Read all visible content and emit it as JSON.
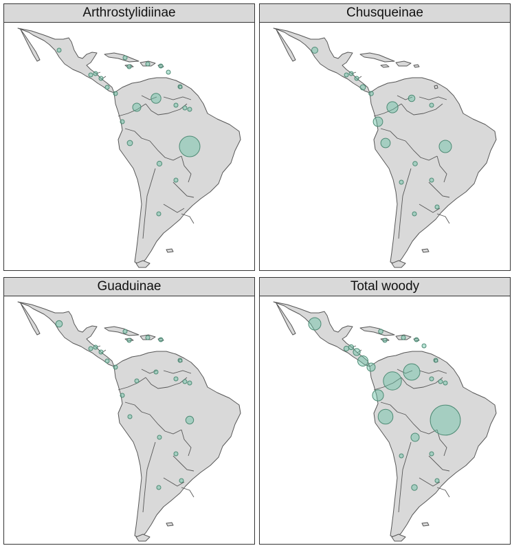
{
  "colors": {
    "bubble": "#66c2a5",
    "land": "#d9d9d9",
    "outline": "#555555",
    "strip": "#d9d9d9"
  },
  "panels": [
    {
      "title": "Arthrostylidiinae",
      "bubbles": [
        {
          "region": "Mexico",
          "size": 0.08
        },
        {
          "region": "Cuba",
          "size": 0.08
        },
        {
          "region": "Hispaniola",
          "size": 0.05
        },
        {
          "region": "Jamaica",
          "size": 0.04
        },
        {
          "region": "Puerto Rico",
          "size": 0.04
        },
        {
          "region": "Lesser Antilles",
          "size": 0.04
        },
        {
          "region": "Guatemala",
          "size": 0.05
        },
        {
          "region": "Honduras",
          "size": 0.06
        },
        {
          "region": "Nicaragua",
          "size": 0.07
        },
        {
          "region": "Costa Rica",
          "size": 0.09
        },
        {
          "region": "Panama",
          "size": 0.08
        },
        {
          "region": "Colombia",
          "size": 0.2
        },
        {
          "region": "Venezuela",
          "size": 0.24
        },
        {
          "region": "Trinidad",
          "size": 0.05
        },
        {
          "region": "Guyana",
          "size": 0.06
        },
        {
          "region": "Suriname",
          "size": 0.04
        },
        {
          "region": "French Guiana",
          "size": 0.04
        },
        {
          "region": "Ecuador",
          "size": 0.1
        },
        {
          "region": "Peru",
          "size": 0.13
        },
        {
          "region": "Brazil",
          "size": 0.5
        },
        {
          "region": "Bolivia",
          "size": 0.12
        },
        {
          "region": "Paraguay",
          "size": 0.04
        },
        {
          "region": "Argentina",
          "size": 0.07
        }
      ]
    },
    {
      "title": "Chusqueinae",
      "bubbles": [
        {
          "region": "Mexico",
          "size": 0.15
        },
        {
          "region": "Guatemala",
          "size": 0.06
        },
        {
          "region": "Honduras",
          "size": 0.06
        },
        {
          "region": "Nicaragua",
          "size": 0.1
        },
        {
          "region": "Costa Rica",
          "size": 0.13
        },
        {
          "region": "Panama",
          "size": 0.11
        },
        {
          "region": "Colombia",
          "size": 0.27
        },
        {
          "region": "Venezuela",
          "size": 0.16
        },
        {
          "region": "Guyana",
          "size": 0.04
        },
        {
          "region": "Ecuador",
          "size": 0.23
        },
        {
          "region": "Peru",
          "size": 0.23
        },
        {
          "region": "Brazil",
          "size": 0.3
        },
        {
          "region": "Bolivia",
          "size": 0.11
        },
        {
          "region": "Chile",
          "size": 0.09
        },
        {
          "region": "Paraguay",
          "size": 0.04
        },
        {
          "region": "Uruguay",
          "size": 0.05
        },
        {
          "region": "Argentina",
          "size": 0.09
        }
      ]
    },
    {
      "title": "Guaduinae",
      "bubbles": [
        {
          "region": "Mexico",
          "size": 0.16
        },
        {
          "region": "Cuba",
          "size": 0.07
        },
        {
          "region": "Jamaica",
          "size": 0.04
        },
        {
          "region": "Hispaniola",
          "size": 0.05
        },
        {
          "region": "Puerto Rico",
          "size": 0.04
        },
        {
          "region": "Guatemala",
          "size": 0.05
        },
        {
          "region": "Honduras",
          "size": 0.06
        },
        {
          "region": "Nicaragua",
          "size": 0.06
        },
        {
          "region": "Costa Rica",
          "size": 0.07
        },
        {
          "region": "Panama",
          "size": 0.06
        },
        {
          "region": "Colombia",
          "size": 0.1
        },
        {
          "region": "Venezuela",
          "size": 0.1
        },
        {
          "region": "Trinidad",
          "size": 0.05
        },
        {
          "region": "Guyana",
          "size": 0.05
        },
        {
          "region": "Suriname",
          "size": 0.05
        },
        {
          "region": "French Guiana",
          "size": 0.04
        },
        {
          "region": "Ecuador",
          "size": 0.06
        },
        {
          "region": "Peru",
          "size": 0.09
        },
        {
          "region": "Brazil",
          "size": 0.19
        },
        {
          "region": "Bolivia",
          "size": 0.07
        },
        {
          "region": "Paraguay",
          "size": 0.05
        },
        {
          "region": "Uruguay",
          "size": 0.04
        },
        {
          "region": "Argentina",
          "size": 0.06
        }
      ]
    },
    {
      "title": "Total woody",
      "bubbles": [
        {
          "region": "Mexico",
          "size": 0.3
        },
        {
          "region": "Cuba",
          "size": 0.11
        },
        {
          "region": "Jamaica",
          "size": 0.06
        },
        {
          "region": "Hispaniola",
          "size": 0.09
        },
        {
          "region": "Puerto Rico",
          "size": 0.05
        },
        {
          "region": "Lesser Antilles",
          "size": 0.05
        },
        {
          "region": "Guatemala",
          "size": 0.12
        },
        {
          "region": "Honduras",
          "size": 0.12
        },
        {
          "region": "Nicaragua",
          "size": 0.17
        },
        {
          "region": "Costa Rica",
          "size": 0.25
        },
        {
          "region": "Panama",
          "size": 0.2
        },
        {
          "region": "Colombia",
          "size": 0.44
        },
        {
          "region": "Venezuela",
          "size": 0.4
        },
        {
          "region": "Trinidad",
          "size": 0.07
        },
        {
          "region": "Guyana",
          "size": 0.08
        },
        {
          "region": "Suriname",
          "size": 0.06
        },
        {
          "region": "French Guiana",
          "size": 0.05
        },
        {
          "region": "Ecuador",
          "size": 0.27
        },
        {
          "region": "Peru",
          "size": 0.36
        },
        {
          "region": "Brazil",
          "size": 0.73
        },
        {
          "region": "Bolivia",
          "size": 0.2
        },
        {
          "region": "Chile",
          "size": 0.1
        },
        {
          "region": "Paraguay",
          "size": 0.06
        },
        {
          "region": "Uruguay",
          "size": 0.06
        },
        {
          "region": "Argentina",
          "size": 0.14
        }
      ]
    }
  ]
}
